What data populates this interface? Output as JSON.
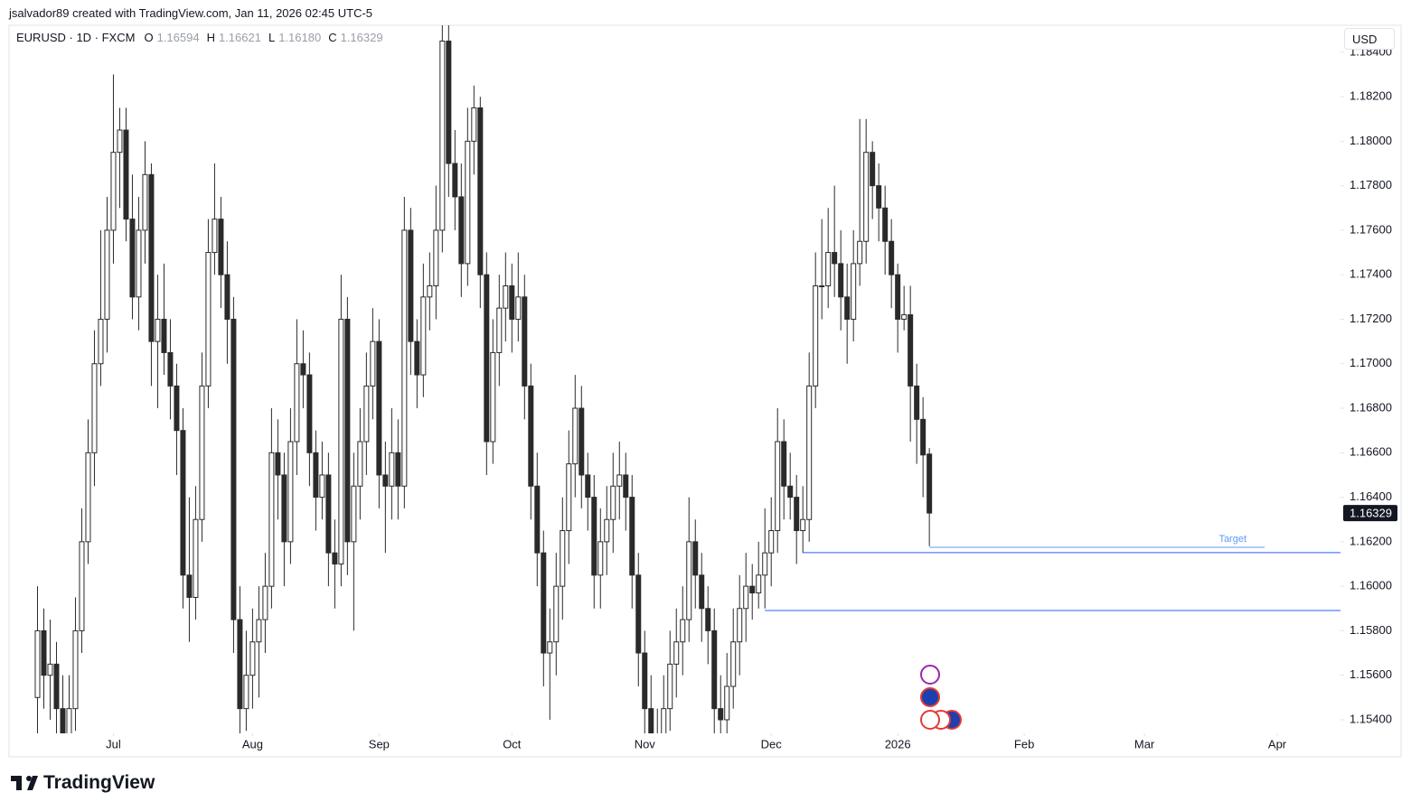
{
  "caption": "jsalvador89 created with TradingView.com, Jan 11, 2026 02:45 UTC-5",
  "logo": "TradingView",
  "chart_data": {
    "type": "candlestick",
    "header": {
      "symbol": "EURUSD · 1D · FXCM",
      "o_label": "O",
      "o": "1.16594",
      "h_label": "H",
      "h": "1.16621",
      "l_label": "L",
      "l": "1.16180",
      "c_label": "C",
      "c": "1.16329"
    },
    "currency": "USD",
    "price_label": "1.16329",
    "up_color": "#ffffff",
    "down_color": "#2a2a2a",
    "border_color": "#2a2a2a",
    "xlim": [
      -16.5,
      194
    ],
    "ylim": [
      1.15339,
      1.18521
    ],
    "xticks": [
      {
        "value": 0,
        "label": "Jul"
      },
      {
        "value": 22,
        "label": "Aug"
      },
      {
        "value": 42,
        "label": "Sep"
      },
      {
        "value": 63,
        "label": "Oct"
      },
      {
        "value": 84,
        "label": "Nov"
      },
      {
        "value": 104,
        "label": "Dec"
      },
      {
        "value": 124,
        "label": "2026"
      },
      {
        "value": 144,
        "label": "Feb"
      },
      {
        "value": 163,
        "label": "Mar"
      },
      {
        "value": 184,
        "label": "Apr"
      }
    ],
    "yticks": [
      {
        "value": 1.154,
        "label": "1.15400"
      },
      {
        "value": 1.156,
        "label": "1.15600"
      },
      {
        "value": 1.158,
        "label": "1.15800"
      },
      {
        "value": 1.16,
        "label": "1.16000"
      },
      {
        "value": 1.162,
        "label": "1.16200"
      },
      {
        "value": 1.164,
        "label": "1.16400"
      },
      {
        "value": 1.166,
        "label": "1.16600"
      },
      {
        "value": 1.168,
        "label": "1.16800"
      },
      {
        "value": 1.17,
        "label": "1.17000"
      },
      {
        "value": 1.172,
        "label": "1.17200"
      },
      {
        "value": 1.174,
        "label": "1.17400"
      },
      {
        "value": 1.176,
        "label": "1.17600"
      },
      {
        "value": 1.178,
        "label": "1.17800"
      },
      {
        "value": 1.18,
        "label": "1.18000"
      },
      {
        "value": 1.182,
        "label": "1.18200"
      },
      {
        "value": 1.184,
        "label": "1.18400"
      }
    ],
    "levels": [
      {
        "price": 1.16151,
        "x_start": 109,
        "color": "#2962ff"
      },
      {
        "price": 1.15891,
        "x_start": 103,
        "color": "#2962ff"
      }
    ],
    "target": {
      "label": "Target",
      "price": 1.16175,
      "x_start": 129,
      "x_end": 182,
      "color": "#5b9cf6"
    },
    "x": [
      -12,
      -11,
      -10,
      -9,
      -8,
      -7,
      -6,
      -5,
      -4,
      -3,
      -2,
      -1,
      0,
      1,
      2,
      3,
      4,
      5,
      6,
      7,
      8,
      9,
      10,
      11,
      12,
      13,
      14,
      15,
      16,
      17,
      18,
      19,
      20,
      21,
      22,
      23,
      24,
      25,
      26,
      27,
      28,
      29,
      30,
      31,
      32,
      33,
      34,
      35,
      36,
      37,
      38,
      39,
      40,
      41,
      42,
      43,
      44,
      45,
      46,
      47,
      48,
      49,
      50,
      51,
      52,
      53,
      54,
      55,
      56,
      57,
      58,
      59,
      60,
      61,
      62,
      63,
      64,
      65,
      66,
      67,
      68,
      69,
      70,
      71,
      72,
      73,
      74,
      75,
      76,
      77,
      78,
      79,
      80,
      81,
      82,
      83,
      84,
      85,
      86,
      87,
      88,
      89,
      90,
      91,
      92,
      93,
      94,
      95,
      96,
      97,
      98,
      99,
      100,
      101,
      102,
      103,
      104,
      105,
      106,
      107,
      108,
      109,
      110,
      111,
      112,
      113,
      114,
      115,
      116,
      117,
      118,
      119,
      120,
      121,
      122,
      123,
      124,
      125,
      126,
      127,
      128,
      129
    ],
    "ohlc": [
      [
        1.155,
        1.16,
        1.152,
        1.158
      ],
      [
        1.158,
        1.159,
        1.1545,
        1.156
      ],
      [
        1.156,
        1.1585,
        1.154,
        1.1565
      ],
      [
        1.1565,
        1.1575,
        1.153,
        1.1545
      ],
      [
        1.1545,
        1.156,
        1.15,
        1.152
      ],
      [
        1.152,
        1.156,
        1.151,
        1.1545
      ],
      [
        1.1545,
        1.1595,
        1.1535,
        1.158
      ],
      [
        1.158,
        1.1635,
        1.157,
        1.162
      ],
      [
        1.162,
        1.1675,
        1.161,
        1.166
      ],
      [
        1.166,
        1.1715,
        1.1645,
        1.17
      ],
      [
        1.17,
        1.176,
        1.169,
        1.172
      ],
      [
        1.172,
        1.1775,
        1.1705,
        1.176
      ],
      [
        1.176,
        1.183,
        1.1745,
        1.1795
      ],
      [
        1.1795,
        1.1815,
        1.177,
        1.1805
      ],
      [
        1.1805,
        1.1815,
        1.1755,
        1.1765
      ],
      [
        1.1765,
        1.1785,
        1.172,
        1.173
      ],
      [
        1.173,
        1.1775,
        1.1715,
        1.176
      ],
      [
        1.176,
        1.18,
        1.1745,
        1.1785
      ],
      [
        1.1785,
        1.179,
        1.169,
        1.171
      ],
      [
        1.171,
        1.174,
        1.168,
        1.172
      ],
      [
        1.172,
        1.1745,
        1.1695,
        1.1705
      ],
      [
        1.1705,
        1.172,
        1.1675,
        1.169
      ],
      [
        1.169,
        1.17,
        1.165,
        1.167
      ],
      [
        1.167,
        1.168,
        1.159,
        1.1605
      ],
      [
        1.1605,
        1.164,
        1.1575,
        1.1595
      ],
      [
        1.1595,
        1.1645,
        1.1585,
        1.163
      ],
      [
        1.163,
        1.1705,
        1.162,
        1.169
      ],
      [
        1.169,
        1.1765,
        1.168,
        1.175
      ],
      [
        1.175,
        1.179,
        1.174,
        1.1765
      ],
      [
        1.1765,
        1.1775,
        1.1725,
        1.174
      ],
      [
        1.174,
        1.1755,
        1.17,
        1.172
      ],
      [
        1.172,
        1.173,
        1.157,
        1.1585
      ],
      [
        1.1585,
        1.16,
        1.153,
        1.1545
      ],
      [
        1.1545,
        1.158,
        1.1535,
        1.156
      ],
      [
        1.156,
        1.159,
        1.1545,
        1.1575
      ],
      [
        1.1575,
        1.16,
        1.155,
        1.1585
      ],
      [
        1.1585,
        1.1615,
        1.157,
        1.16
      ],
      [
        1.16,
        1.168,
        1.159,
        1.166
      ],
      [
        1.166,
        1.1675,
        1.163,
        1.165
      ],
      [
        1.165,
        1.166,
        1.16,
        1.162
      ],
      [
        1.162,
        1.168,
        1.161,
        1.1665
      ],
      [
        1.1665,
        1.172,
        1.165,
        1.17
      ],
      [
        1.17,
        1.1715,
        1.168,
        1.1695
      ],
      [
        1.1695,
        1.1705,
        1.1645,
        1.166
      ],
      [
        1.166,
        1.167,
        1.1625,
        1.164
      ],
      [
        1.164,
        1.1665,
        1.163,
        1.165
      ],
      [
        1.165,
        1.166,
        1.16,
        1.1615
      ],
      [
        1.1615,
        1.163,
        1.159,
        1.161
      ],
      [
        1.161,
        1.174,
        1.16,
        1.172
      ],
      [
        1.172,
        1.173,
        1.1605,
        1.162
      ],
      [
        1.162,
        1.166,
        1.158,
        1.1645
      ],
      [
        1.1645,
        1.168,
        1.163,
        1.1665
      ],
      [
        1.1665,
        1.1705,
        1.165,
        1.169
      ],
      [
        1.169,
        1.1725,
        1.1675,
        1.171
      ],
      [
        1.171,
        1.172,
        1.1635,
        1.165
      ],
      [
        1.165,
        1.1665,
        1.1615,
        1.1645
      ],
      [
        1.1645,
        1.168,
        1.163,
        1.166
      ],
      [
        1.166,
        1.1675,
        1.163,
        1.1645
      ],
      [
        1.1645,
        1.1775,
        1.1635,
        1.176
      ],
      [
        1.176,
        1.177,
        1.1695,
        1.171
      ],
      [
        1.171,
        1.172,
        1.168,
        1.1695
      ],
      [
        1.1695,
        1.1745,
        1.1685,
        1.173
      ],
      [
        1.173,
        1.175,
        1.1715,
        1.1735
      ],
      [
        1.1735,
        1.178,
        1.172,
        1.176
      ],
      [
        1.176,
        1.188,
        1.175,
        1.1845
      ],
      [
        1.1845,
        1.186,
        1.1775,
        1.179
      ],
      [
        1.179,
        1.1805,
        1.176,
        1.1775
      ],
      [
        1.1775,
        1.179,
        1.173,
        1.1745
      ],
      [
        1.1745,
        1.1815,
        1.1735,
        1.18
      ],
      [
        1.18,
        1.1825,
        1.1785,
        1.1815
      ],
      [
        1.1815,
        1.182,
        1.1725,
        1.174
      ],
      [
        1.174,
        1.175,
        1.165,
        1.1665
      ],
      [
        1.1665,
        1.172,
        1.1655,
        1.1705
      ],
      [
        1.1705,
        1.174,
        1.169,
        1.1725
      ],
      [
        1.1725,
        1.175,
        1.171,
        1.1735
      ],
      [
        1.1735,
        1.1745,
        1.1705,
        1.172
      ],
      [
        1.172,
        1.175,
        1.171,
        1.173
      ],
      [
        1.173,
        1.174,
        1.1675,
        1.169
      ],
      [
        1.169,
        1.17,
        1.163,
        1.1645
      ],
      [
        1.1645,
        1.166,
        1.16,
        1.1615
      ],
      [
        1.1615,
        1.1625,
        1.1555,
        1.157
      ],
      [
        1.157,
        1.159,
        1.154,
        1.1575
      ],
      [
        1.1575,
        1.1615,
        1.156,
        1.16
      ],
      [
        1.16,
        1.164,
        1.1585,
        1.1625
      ],
      [
        1.1625,
        1.167,
        1.161,
        1.1655
      ],
      [
        1.1655,
        1.1695,
        1.164,
        1.168
      ],
      [
        1.168,
        1.169,
        1.1635,
        1.165
      ],
      [
        1.165,
        1.166,
        1.1625,
        1.164
      ],
      [
        1.164,
        1.165,
        1.159,
        1.1605
      ],
      [
        1.1605,
        1.1635,
        1.159,
        1.162
      ],
      [
        1.162,
        1.1645,
        1.1605,
        1.163
      ],
      [
        1.163,
        1.166,
        1.1615,
        1.1645
      ],
      [
        1.1645,
        1.1665,
        1.163,
        1.165
      ],
      [
        1.165,
        1.166,
        1.1625,
        1.164
      ],
      [
        1.164,
        1.165,
        1.159,
        1.1605
      ],
      [
        1.1605,
        1.1615,
        1.1555,
        1.157
      ],
      [
        1.157,
        1.158,
        1.153,
        1.1545
      ],
      [
        1.1545,
        1.156,
        1.1515,
        1.153
      ],
      [
        1.153,
        1.1545,
        1.151,
        1.1525
      ],
      [
        1.1525,
        1.156,
        1.1515,
        1.1545
      ],
      [
        1.1545,
        1.158,
        1.1535,
        1.1565
      ],
      [
        1.1565,
        1.159,
        1.155,
        1.1575
      ],
      [
        1.1575,
        1.16,
        1.156,
        1.1585
      ],
      [
        1.1585,
        1.164,
        1.1575,
        1.162
      ],
      [
        1.162,
        1.163,
        1.159,
        1.1605
      ],
      [
        1.1605,
        1.1615,
        1.1575,
        1.159
      ],
      [
        1.159,
        1.16,
        1.1565,
        1.158
      ],
      [
        1.158,
        1.159,
        1.153,
        1.1545
      ],
      [
        1.1545,
        1.156,
        1.1525,
        1.154
      ],
      [
        1.154,
        1.157,
        1.153,
        1.1555
      ],
      [
        1.1555,
        1.159,
        1.1545,
        1.1575
      ],
      [
        1.1575,
        1.1605,
        1.156,
        1.159
      ],
      [
        1.159,
        1.1615,
        1.1575,
        1.16
      ],
      [
        1.16,
        1.161,
        1.1585,
        1.1597
      ],
      [
        1.1597,
        1.162,
        1.159,
        1.1605
      ],
      [
        1.1605,
        1.1635,
        1.159,
        1.1615
      ],
      [
        1.1615,
        1.164,
        1.16,
        1.1625
      ],
      [
        1.1625,
        1.168,
        1.1615,
        1.1665
      ],
      [
        1.1665,
        1.1675,
        1.163,
        1.1645
      ],
      [
        1.1645,
        1.166,
        1.163,
        1.164
      ],
      [
        1.164,
        1.165,
        1.161,
        1.1625
      ],
      [
        1.1625,
        1.1645,
        1.1615,
        1.163
      ],
      [
        1.163,
        1.1705,
        1.162,
        1.169
      ],
      [
        1.169,
        1.175,
        1.168,
        1.1735
      ],
      [
        1.1735,
        1.1765,
        1.172,
        1.1735
      ],
      [
        1.1735,
        1.177,
        1.1725,
        1.175
      ],
      [
        1.175,
        1.178,
        1.173,
        1.1745
      ],
      [
        1.1745,
        1.176,
        1.1715,
        1.173
      ],
      [
        1.173,
        1.1745,
        1.17,
        1.172
      ],
      [
        1.172,
        1.176,
        1.171,
        1.1745
      ],
      [
        1.1745,
        1.181,
        1.1735,
        1.1755
      ],
      [
        1.1755,
        1.181,
        1.1745,
        1.1795
      ],
      [
        1.1795,
        1.18,
        1.1765,
        1.178
      ],
      [
        1.178,
        1.179,
        1.1755,
        1.177
      ],
      [
        1.177,
        1.178,
        1.174,
        1.1755
      ],
      [
        1.1755,
        1.1765,
        1.1725,
        1.174
      ],
      [
        1.174,
        1.1745,
        1.1705,
        1.172
      ],
      [
        1.172,
        1.1735,
        1.1715,
        1.1722
      ],
      [
        1.1722,
        1.1735,
        1.1665,
        1.169
      ],
      [
        1.169,
        1.17,
        1.1655,
        1.1675
      ],
      [
        1.1675,
        1.1685,
        1.164,
        1.1659
      ],
      [
        1.16594,
        1.16621,
        1.1618,
        1.16329
      ]
    ]
  }
}
